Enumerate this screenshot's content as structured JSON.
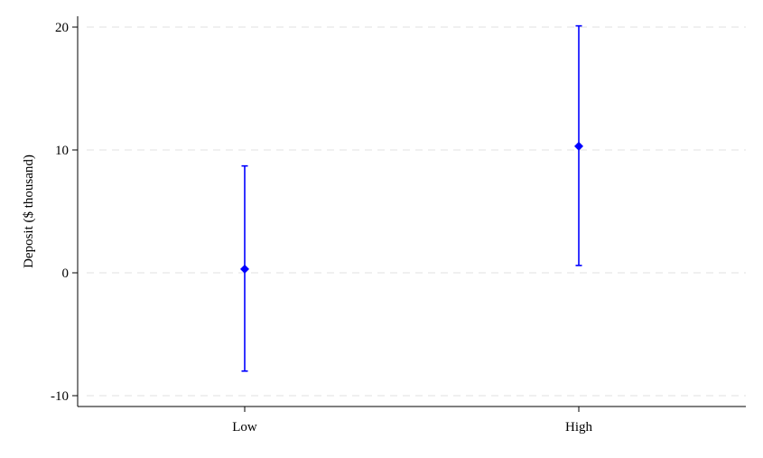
{
  "chart_data": {
    "type": "scatter",
    "title": "",
    "xlabel": "",
    "ylabel": "Deposit ($ thousand)",
    "categories": [
      "Low",
      "High"
    ],
    "series": [
      {
        "points": [
          {
            "x": "Low",
            "y": 0.3,
            "ci_low": -8.0,
            "ci_high": 8.7
          },
          {
            "x": "High",
            "y": 10.3,
            "ci_low": 0.6,
            "ci_high": 20.1
          }
        ]
      }
    ],
    "yticks": [
      -10,
      0,
      10,
      20
    ],
    "ytick_labels": [
      "-10",
      "0",
      "10",
      "20"
    ],
    "ylim": [
      -10.9,
      21.0
    ],
    "grid": true,
    "legend": "none",
    "colors": {
      "marker": "#0000ff",
      "grid": "#e6e6e6",
      "axis": "#000000"
    }
  }
}
